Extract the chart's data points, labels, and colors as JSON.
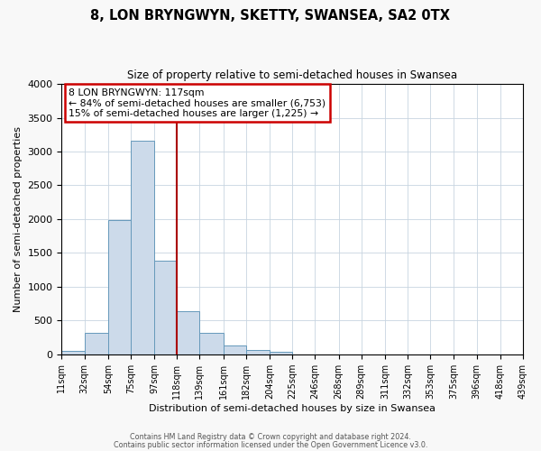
{
  "title": "8, LON BRYNGWYN, SKETTY, SWANSEA, SA2 0TX",
  "subtitle": "Size of property relative to semi-detached houses in Swansea",
  "xlabel": "Distribution of semi-detached houses by size in Swansea",
  "ylabel": "Number of semi-detached properties",
  "bin_edges": [
    11,
    32,
    54,
    75,
    97,
    118,
    139,
    161,
    182,
    204,
    225,
    246,
    268,
    289,
    311,
    332,
    353,
    375,
    396,
    418,
    439
  ],
  "bar_heights": [
    50,
    320,
    1980,
    3160,
    1390,
    640,
    310,
    130,
    60,
    30,
    0,
    0,
    0,
    0,
    0,
    0,
    0,
    0,
    0,
    0
  ],
  "bar_color": "#ccdaea",
  "bar_edge_color": "#6699bb",
  "vline_color": "#aa0000",
  "vline_x": 118,
  "annotation_title": "8 LON BRYNGWYN: 117sqm",
  "annotation_line1": "← 84% of semi-detached houses are smaller (6,753)",
  "annotation_line2": "15% of semi-detached houses are larger (1,225) →",
  "annotation_box_edgecolor": "#cc0000",
  "ylim": [
    0,
    4000
  ],
  "yticks": [
    0,
    500,
    1000,
    1500,
    2000,
    2500,
    3000,
    3500,
    4000
  ],
  "tick_labels": [
    "11sqm",
    "32sqm",
    "54sqm",
    "75sqm",
    "97sqm",
    "118sqm",
    "139sqm",
    "161sqm",
    "182sqm",
    "204sqm",
    "225sqm",
    "246sqm",
    "268sqm",
    "289sqm",
    "311sqm",
    "332sqm",
    "353sqm",
    "375sqm",
    "396sqm",
    "418sqm",
    "439sqm"
  ],
  "footer1": "Contains HM Land Registry data © Crown copyright and database right 2024.",
  "footer2": "Contains public sector information licensed under the Open Government Licence v3.0.",
  "bg_color": "#f8f8f8",
  "plot_bg_color": "#ffffff",
  "grid_color": "#c8d4e0"
}
